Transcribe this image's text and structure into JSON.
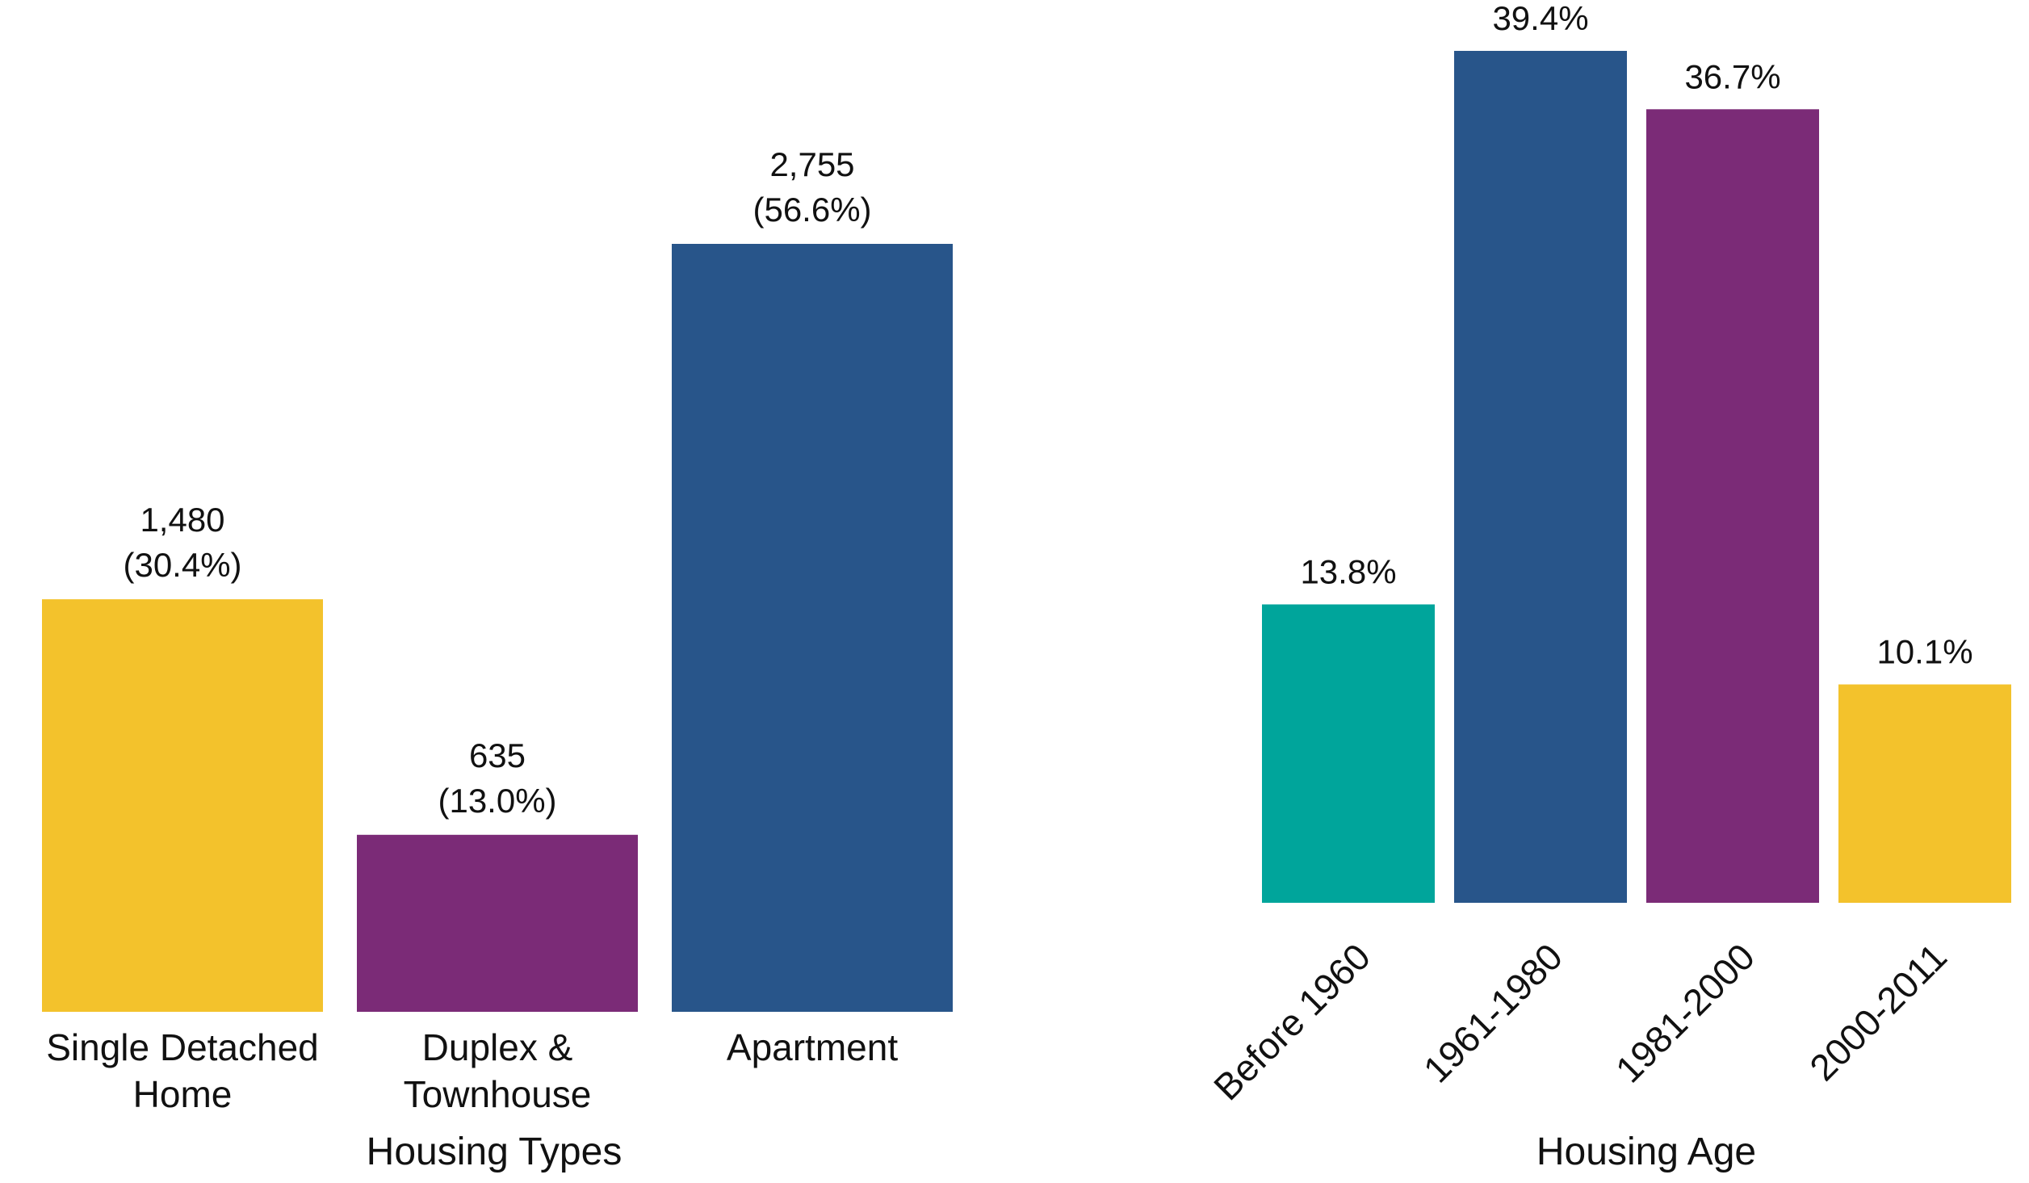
{
  "chart_data": [
    {
      "type": "bar",
      "xlabel": "Housing Types",
      "ylabel": "",
      "categories": [
        [
          "Single Detached",
          "Home"
        ],
        [
          "Duplex &",
          "Townhouse"
        ],
        [
          "Apartment"
        ]
      ],
      "values": [
        1480,
        635,
        2755
      ],
      "value_labels": [
        [
          "1,480",
          "(30.4%)"
        ],
        [
          "635",
          "(13.0%)"
        ],
        [
          "2,755",
          "(56.6%)"
        ]
      ],
      "colors": [
        "#F3C22C",
        "#7B2B77",
        "#28558A"
      ],
      "ylim": [
        0,
        2755
      ],
      "grid": false,
      "legend": "none"
    },
    {
      "type": "bar",
      "xlabel": "Housing Age",
      "ylabel": "",
      "categories": [
        "Before 1960",
        "1961-1980",
        "1981-2000",
        "2000-2011"
      ],
      "values": [
        13.8,
        39.4,
        36.7,
        10.1
      ],
      "value_labels": [
        "13.8%",
        "39.4%",
        "36.7%",
        "10.1%"
      ],
      "colors": [
        "#00A59B",
        "#28558A",
        "#7B2B77",
        "#F3C22C"
      ],
      "ylim": [
        0,
        39.4
      ],
      "grid": false,
      "legend": "none",
      "tick_label_rotation": -45
    }
  ]
}
